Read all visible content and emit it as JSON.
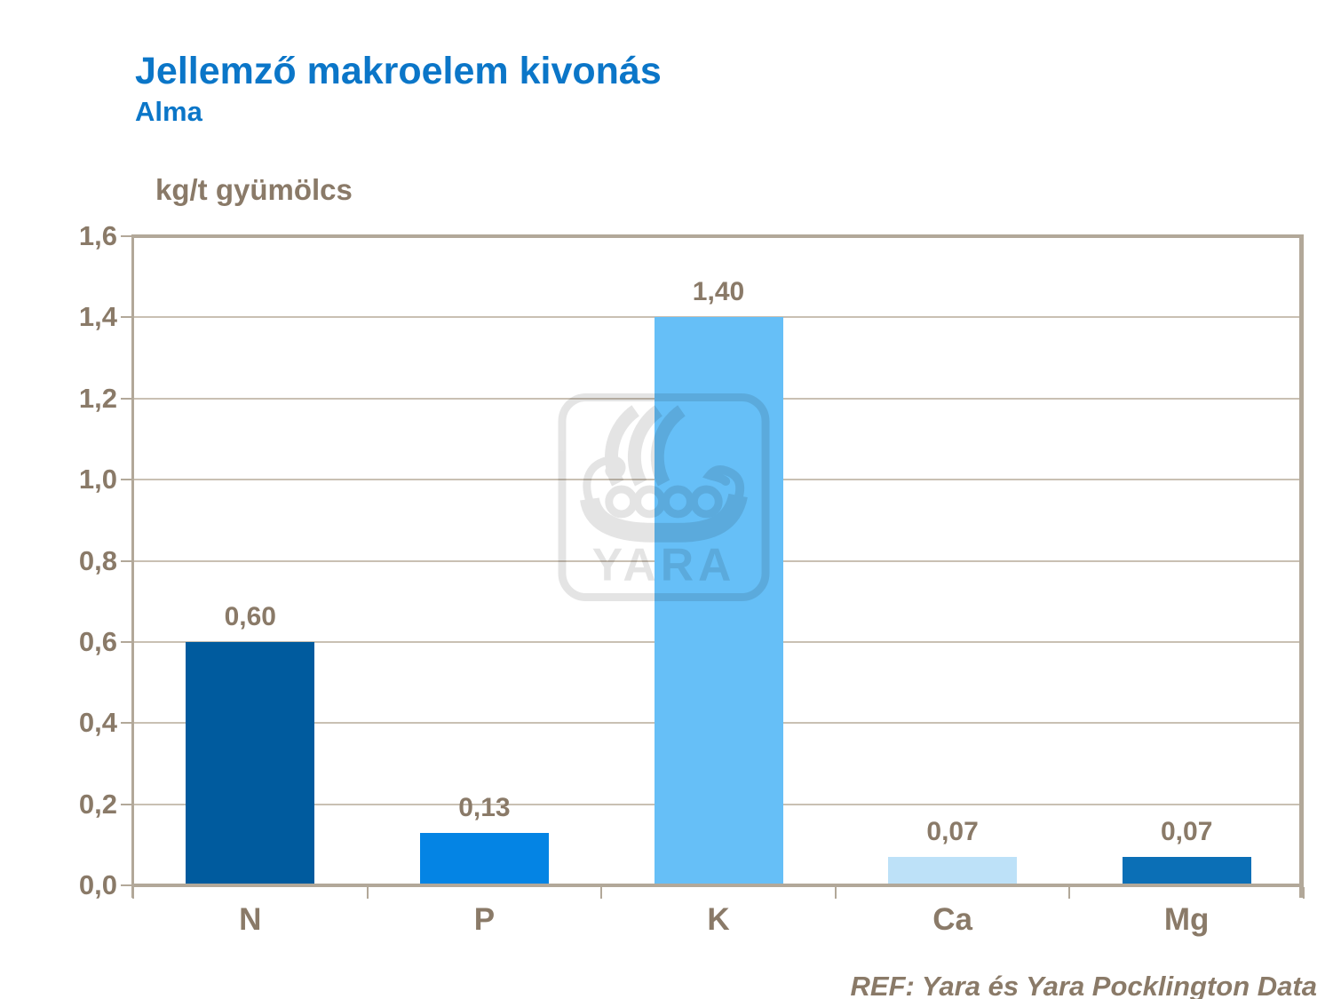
{
  "page": {
    "background": "#ffffff"
  },
  "header": {
    "title": "Jellemző makroelem kivonás",
    "subtitle": "Alma",
    "title_color": "#0B76C8"
  },
  "chart_data": {
    "type": "bar",
    "title": "Jellemző makroelem kivonás",
    "subtitle": "Alma",
    "unit_label": "kg/t gyümölcs",
    "categories": [
      "N",
      "P",
      "K",
      "Ca",
      "Mg"
    ],
    "values": [
      0.6,
      0.13,
      1.4,
      0.07,
      0.07
    ],
    "value_labels": [
      "0,60",
      "0,13",
      "1,40",
      "0,07",
      "0,07"
    ],
    "bar_colors": [
      "#005B9E",
      "#0484E4",
      "#66BFF7",
      "#BDE1F8",
      "#0B6FB6"
    ],
    "ylim": [
      0,
      1.6
    ],
    "ytick_step": 0.2,
    "ytick_labels": [
      "0,0",
      "0,2",
      "0,4",
      "0,6",
      "0,8",
      "1,0",
      "1,2",
      "1,4",
      "1,6"
    ],
    "grid": true,
    "legend": "none",
    "text_color": "#8A7A68",
    "axis_color": "#B2A899",
    "grid_color": "#C9C0B3"
  },
  "watermark": {
    "icon": "yara-viking-ship-logo",
    "text": "YARA",
    "opacity": 0.1
  },
  "footer": {
    "reference": "REF: Yara és Yara Pocklington Data"
  }
}
